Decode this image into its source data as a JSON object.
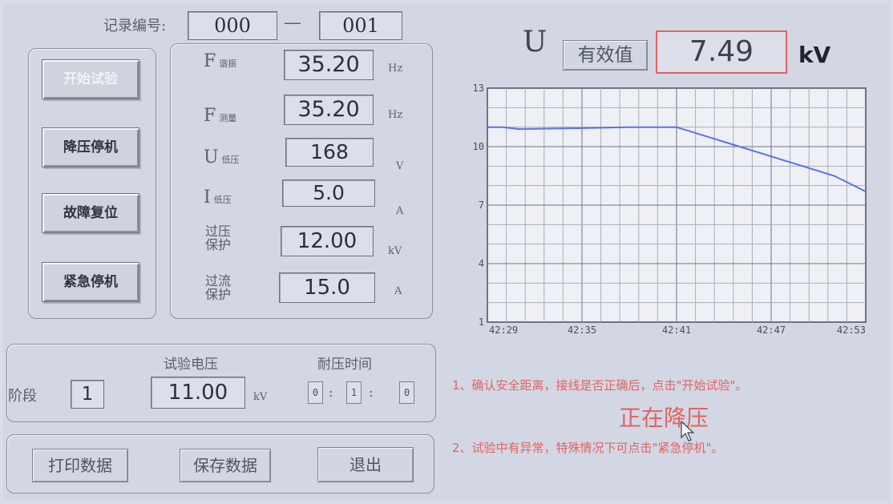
{
  "record": {
    "label": "记录编号:",
    "part1": "000",
    "dash": "—",
    "part2": "001"
  },
  "buttons": {
    "start": "开始试验",
    "step_down_stop": "降压停机",
    "fault_reset": "故障复位",
    "emergency_stop": "紧急停机"
  },
  "readings": [
    {
      "label": "F",
      "sub": "谐振",
      "value": "35.20",
      "unit": "Hz"
    },
    {
      "label": "F",
      "sub": "测量",
      "value": "35.20",
      "unit": "Hz"
    },
    {
      "label": "U",
      "sub": "低压",
      "value": "168",
      "unit": "V"
    },
    {
      "label": "I",
      "sub": "低压",
      "value": "5.0",
      "unit": "A"
    },
    {
      "label": "过压\n保护",
      "value": "12.00",
      "unit": "kV"
    },
    {
      "label": "过流\n保护",
      "value": "15.0",
      "unit": "A"
    }
  ],
  "voltage_display": {
    "symbol": "U",
    "mode_button": "有效值",
    "value": "7.49",
    "unit": "kV"
  },
  "stage": {
    "label": "阶段",
    "value": "1",
    "test_voltage_label": "试验电压",
    "test_voltage_value": "11.00",
    "test_voltage_unit": "kV",
    "withstand_time_label": "耐压时间",
    "time": [
      "0",
      "1",
      "0"
    ],
    "sep": ":"
  },
  "bottom_buttons": {
    "print": "打印数据",
    "save": "保存数据",
    "exit": "退出"
  },
  "status": {
    "hint1": "1、确认安全距离，接线是否正确后，点击\"开始试验\"。",
    "current": "正在降压",
    "hint2": "2、试验中有异常，特殊情况下可点击\"紧急停机\"。"
  },
  "colors": {
    "accent_red": "#e65a5a",
    "line_blue": "#5a73e6"
  },
  "chart_data": {
    "type": "line",
    "x_ticks": [
      "42:29",
      "42:35",
      "42:41",
      "42:47",
      "42:53"
    ],
    "y_ticks": [
      "1",
      "4",
      "7",
      "10",
      "13"
    ],
    "ylim": [
      1,
      13
    ],
    "grid": true,
    "series": [
      {
        "x": [
          "42:29",
          "42:30",
          "42:31",
          "42:35",
          "42:38",
          "42:41",
          "42:43",
          "42:45",
          "42:47",
          "42:49",
          "42:51",
          "42:53"
        ],
        "values": [
          11.0,
          11.0,
          10.9,
          10.95,
          11.0,
          11.0,
          10.5,
          10.0,
          9.5,
          9.0,
          8.5,
          7.7
        ]
      }
    ]
  }
}
